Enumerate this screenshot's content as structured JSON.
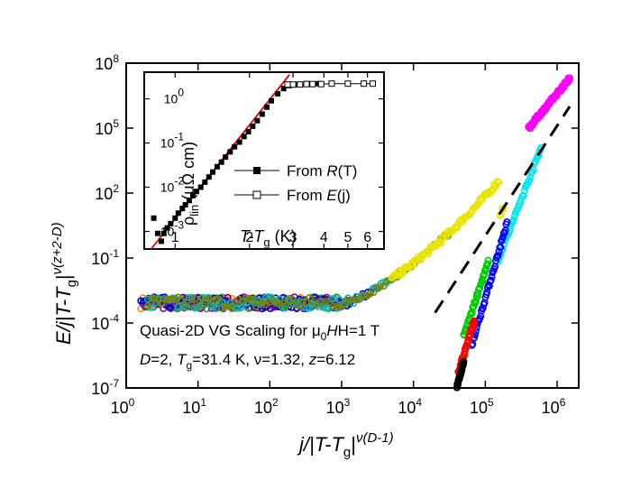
{
  "chart_data": [
    {
      "type": "scatter",
      "scale": "log-log",
      "xlim": [
        1,
        2000000
      ],
      "ylim": [
        1e-07,
        100000000.0
      ],
      "xticks": [
        {
          "v": 1,
          "base": "10",
          "exp": "0"
        },
        {
          "v": 10,
          "base": "10",
          "exp": "1"
        },
        {
          "v": 100,
          "base": "10",
          "exp": "2"
        },
        {
          "v": 1000,
          "base": "10",
          "exp": "3"
        },
        {
          "v": 10000,
          "base": "10",
          "exp": "4"
        },
        {
          "v": 100000,
          "base": "10",
          "exp": "5"
        },
        {
          "v": 1000000,
          "base": "10",
          "exp": "6"
        }
      ],
      "yticks": [
        {
          "v": 1e-07,
          "base": "10",
          "exp": "-7"
        },
        {
          "v": 0.0001,
          "base": "10",
          "exp": "-4"
        },
        {
          "v": 0.1,
          "base": "10",
          "exp": "-1"
        },
        {
          "v": 100,
          "base": "10",
          "exp": "2"
        },
        {
          "v": 100000,
          "base": "10",
          "exp": "5"
        },
        {
          "v": 100000000.0,
          "base": "10",
          "exp": "8"
        }
      ],
      "xlabel": {
        "main": "j/|T-T",
        "sub": "g",
        "close": "|",
        "sup": "ν(D-1)"
      },
      "ylabel": {
        "main": "E/j|T-T",
        "sub": "g",
        "close": "|",
        "sup": "ν(z+2-D)"
      },
      "annotations": {
        "line1_pre": "Quasi-2D VG Scaling for μ",
        "line1_sub": "0",
        "line1_post": "H=1 T",
        "line2_D": "D",
        "line2_a": "=2, ",
        "line2_T": "T",
        "line2_g": "g",
        "line2_b": "=31.4 K, ν=1.32, ",
        "line2_z": "z",
        "line2_c": "=6.12"
      },
      "dashed_line": {
        "x": [
          20000,
          1500000
        ],
        "y": [
          0.0003,
          1000000
        ]
      },
      "series": [
        {
          "color": "#ff8c00",
          "x_range": [
            1.6,
            900
          ],
          "y_plateau": 0.00085,
          "upper": true
        },
        {
          "color": "#2e8b57",
          "x_range": [
            1.8,
            1000
          ],
          "y_plateau": 0.00085,
          "upper": true
        },
        {
          "color": "#8b008b",
          "x_range": [
            1.7,
            1200
          ],
          "y_plateau": 0.00085,
          "upper": true
        },
        {
          "color": "#0000cd",
          "x_range": [
            1.6,
            3000
          ],
          "y_plateau": 0.00085,
          "upper": true
        },
        {
          "color": "#00bfbf",
          "x_range": [
            2,
            5000
          ],
          "y_plateau": 0.00085,
          "upper": true
        },
        {
          "color": "#808000",
          "x_range": [
            2,
            30000
          ],
          "y_plateau": 0.00085,
          "upper": true
        },
        {
          "color": "#e6e600",
          "x_range": [
            5000,
            180000
          ],
          "upper": true
        },
        {
          "color": "#ff00ff",
          "x_range": [
            400000,
            1500000
          ],
          "upper": true
        },
        {
          "color": "#00e5ee",
          "x_range": [
            150000,
            600000
          ],
          "upper": false
        },
        {
          "color": "#0000ff",
          "x_range": [
            65000,
            200000
          ],
          "upper": false
        },
        {
          "color": "#00cc00",
          "x_range": [
            50000,
            110000
          ],
          "upper": false
        },
        {
          "color": "#ff0000",
          "x_range": [
            42000,
            70000
          ],
          "upper": false
        },
        {
          "color": "#000000",
          "x_range": [
            40000,
            50000
          ],
          "upper": false
        }
      ]
    },
    {
      "type": "scatter",
      "scale": "log-log",
      "xlim": [
        0.75,
        7
      ],
      "ylim": [
        0.0004,
        4
      ],
      "xticks": [
        {
          "v": 1,
          "label": "1"
        },
        {
          "v": 2,
          "label": "2"
        },
        {
          "v": 3,
          "label": "3"
        },
        {
          "v": 4,
          "label": "4"
        },
        {
          "v": 5,
          "label": "5"
        },
        {
          "v": 6,
          "label": "6"
        }
      ],
      "yticks": [
        {
          "v": 0.001,
          "base": "10",
          "exp": "-3"
        },
        {
          "v": 0.01,
          "base": "10",
          "exp": "-2"
        },
        {
          "v": 0.1,
          "base": "10",
          "exp": "-1"
        },
        {
          "v": 1,
          "base": "10",
          "exp": "0"
        }
      ],
      "xlabel": {
        "main": "T-T",
        "sub": "g",
        "unit": " (K)"
      },
      "ylabel": {
        "main": "ρ",
        "sub": "lin",
        "unit": " (μΩ cm)"
      },
      "legend": [
        {
          "pre": "From ",
          "var": "R",
          "post": "(T)",
          "marker": "filled-square"
        },
        {
          "pre": "From ",
          "var": "E",
          "post": "(j)",
          "marker": "open-square"
        }
      ],
      "fit_line": {
        "color": "#e00000",
        "x": [
          0.8,
          2.9
        ],
        "y": [
          0.0004,
          3.5
        ]
      },
      "from_R_T": {
        "x": [
          0.82,
          0.85,
          0.88,
          0.9,
          0.93,
          0.96,
          1.0,
          1.03,
          1.07,
          1.1,
          1.14,
          1.18,
          1.22,
          1.27,
          1.32,
          1.37,
          1.42,
          1.48,
          1.54,
          1.6,
          1.67,
          1.74,
          1.82,
          1.9,
          1.98,
          2.06,
          2.15,
          2.25,
          2.35,
          2.45,
          2.6,
          2.75,
          2.9,
          3.1,
          3.4,
          3.8,
          4.3
        ],
        "y": [
          0.002,
          0.0009,
          0.0006,
          0.0009,
          0.0012,
          0.0015,
          0.002,
          0.0026,
          0.0033,
          0.004,
          0.005,
          0.0065,
          0.008,
          0.01,
          0.013,
          0.017,
          0.022,
          0.029,
          0.037,
          0.048,
          0.063,
          0.082,
          0.105,
          0.14,
          0.18,
          0.24,
          0.32,
          0.45,
          0.65,
          0.9,
          1.3,
          1.7,
          2.0,
          2.1,
          2.2,
          2.2,
          2.2
        ]
      },
      "from_E_j": {
        "x": [
          2.85,
          3.0,
          3.2,
          3.4,
          3.6,
          3.9,
          4.3,
          5.0,
          5.8,
          6.3
        ],
        "y": [
          2.1,
          2.1,
          2.1,
          2.15,
          2.15,
          2.15,
          2.2,
          2.2,
          2.2,
          2.2
        ]
      }
    }
  ]
}
